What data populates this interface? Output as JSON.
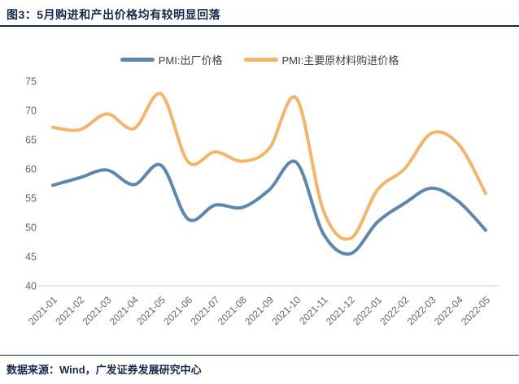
{
  "header": {
    "title": "图3：5月购进和产出价格均有较明显回落"
  },
  "footer": {
    "source": "数据来源：Wind，广发证券发展研究中心"
  },
  "colors": {
    "series_blue": "#5B87B1",
    "series_orange": "#F3B46C",
    "title_text": "#16294D",
    "tick_text": "#666666",
    "axis_line": "#D8D8D8",
    "legend_text": "#404040"
  },
  "chart_data": {
    "type": "line",
    "smooth": true,
    "grid": false,
    "legend_position": "top",
    "x": [
      "2021-01",
      "2021-02",
      "2021-03",
      "2021-04",
      "2021-05",
      "2021-06",
      "2021-07",
      "2021-08",
      "2021-09",
      "2021-10",
      "2021-11",
      "2021-12",
      "2022-01",
      "2022-02",
      "2022-03",
      "2022-04",
      "2022-05"
    ],
    "series": [
      {
        "name": "PMI:出厂价格",
        "color": "#5B87B1",
        "values": [
          57.2,
          58.5,
          59.8,
          57.3,
          60.6,
          51.4,
          53.8,
          53.4,
          56.4,
          61.1,
          48.9,
          45.5,
          50.9,
          54.1,
          56.7,
          54.4,
          49.5
        ]
      },
      {
        "name": "PMI:主要原材料购进价格",
        "color": "#F3B46C",
        "values": [
          67.1,
          66.7,
          69.4,
          66.9,
          72.8,
          61.2,
          62.9,
          61.3,
          63.5,
          72.1,
          52.9,
          48.1,
          56.4,
          60.0,
          66.1,
          64.2,
          55.8
        ]
      }
    ],
    "ylim": [
      40,
      75
    ],
    "yticks": [
      40,
      45,
      50,
      55,
      60,
      65,
      70,
      75
    ],
    "title": "",
    "xlabel": "",
    "ylabel": ""
  }
}
